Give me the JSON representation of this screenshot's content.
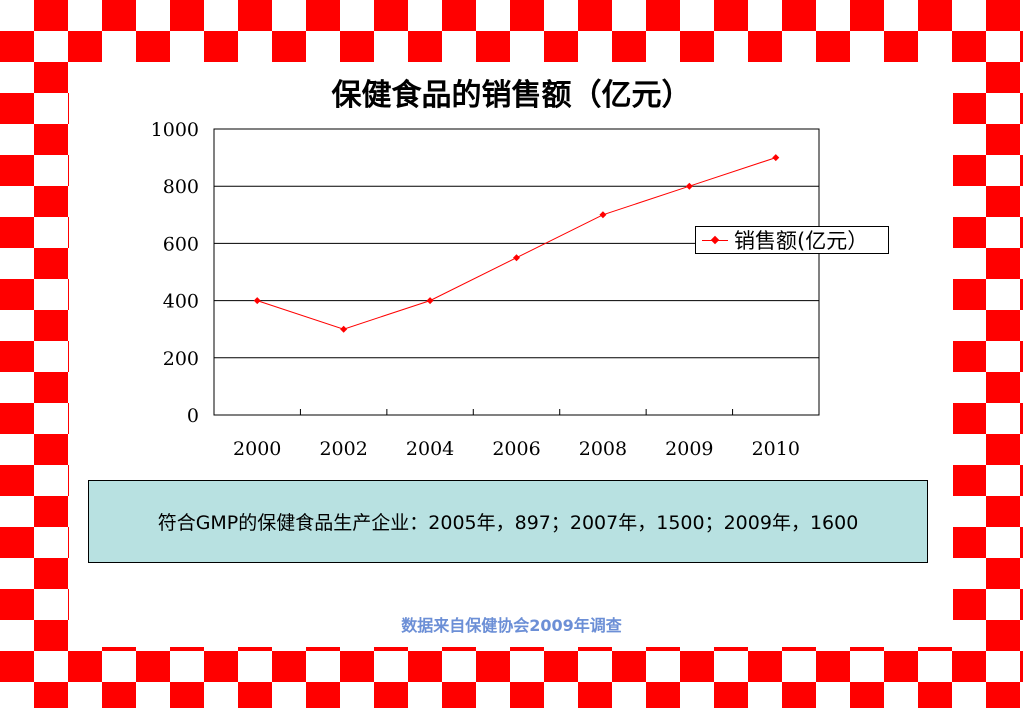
{
  "chart_data": {
    "type": "line",
    "title": "保健食品的销售额（亿元）",
    "categories": [
      "2000",
      "2002",
      "2004",
      "2006",
      "2008",
      "2009",
      "2010"
    ],
    "series": [
      {
        "name": "销售额(亿元）",
        "values": [
          400,
          300,
          400,
          550,
          700,
          800,
          900
        ],
        "color": "#ff0000",
        "marker": "diamond"
      }
    ],
    "yticks": [
      "0",
      "200",
      "400",
      "600",
      "800",
      "1000"
    ],
    "ylim": [
      0,
      1000
    ],
    "grid": "horizontal",
    "legend_position": "right"
  },
  "info_box": {
    "text": "符合GMP的保健食品生产企业：2005年，897；2007年，1500；2009年，1600",
    "background": "#b8e1e1"
  },
  "source_note": "数据来自保健协会2009年调查",
  "colors": {
    "checker": "#ff0000",
    "source_note": "#6c8fd6"
  }
}
